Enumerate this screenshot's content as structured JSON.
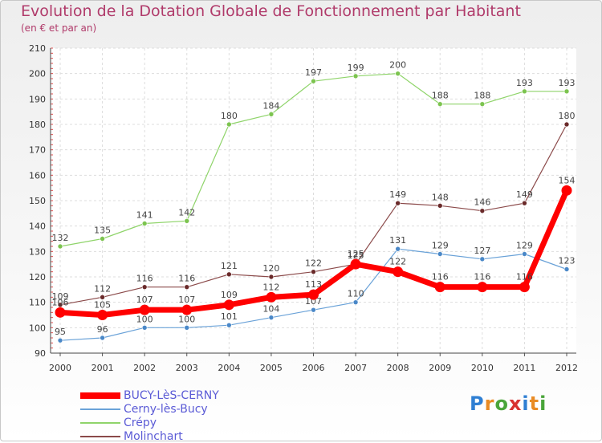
{
  "title": "Evolution de la Dotation Globale de Fonctionnement par Habitant",
  "subtitle": "(en € et par an)",
  "brand": {
    "letters": [
      "P",
      "r",
      "o",
      "x",
      "i",
      "t",
      "i"
    ],
    "colors": [
      "#2f7fd3",
      "#e98b24",
      "#4aa53a",
      "#d8322f",
      "#2f7fd3",
      "#e98b24",
      "#4aa53a"
    ]
  },
  "chart_data": {
    "type": "line",
    "x": [
      "2000",
      "2001",
      "2002",
      "2003",
      "2004",
      "2005",
      "2006",
      "2007",
      "2008",
      "2009",
      "2010",
      "2011",
      "2012"
    ],
    "ylim": [
      90,
      210
    ],
    "yticks": [
      90,
      100,
      110,
      120,
      130,
      140,
      150,
      160,
      170,
      180,
      190,
      200,
      210
    ],
    "grid": true,
    "legend_position": "bottom-left",
    "series": [
      {
        "name": "Crépy",
        "color": "#8fd46a",
        "marker": "#7cc44f",
        "width": 1.2,
        "values": [
          132,
          135,
          141,
          142,
          180,
          184,
          197,
          199,
          200,
          188,
          188,
          193,
          193
        ]
      },
      {
        "name": "Molinchart",
        "color": "#8b4a4a",
        "marker": "#6a2a2a",
        "width": 1.2,
        "values": [
          109,
          112,
          116,
          116,
          121,
          120,
          122,
          125,
          149,
          148,
          146,
          149,
          180
        ]
      },
      {
        "name": "Cerny-lès-Bucy",
        "color": "#6aa2d8",
        "marker": "#4a88c8",
        "width": 1.2,
        "values": [
          95,
          96,
          100,
          100,
          101,
          104,
          107,
          110,
          131,
          129,
          127,
          129,
          123
        ]
      },
      {
        "name": "BUCY-LèS-CERNY",
        "color": "#ff0000",
        "marker": "#ff0000",
        "width": 7,
        "values": [
          106,
          105,
          107,
          107,
          109,
          112,
          113,
          125,
          122,
          116,
          116,
          116,
          154
        ]
      }
    ],
    "legend_order": [
      "BUCY-LèS-CERNY",
      "Cerny-lès-Bucy",
      "Crépy",
      "Molinchart"
    ]
  }
}
